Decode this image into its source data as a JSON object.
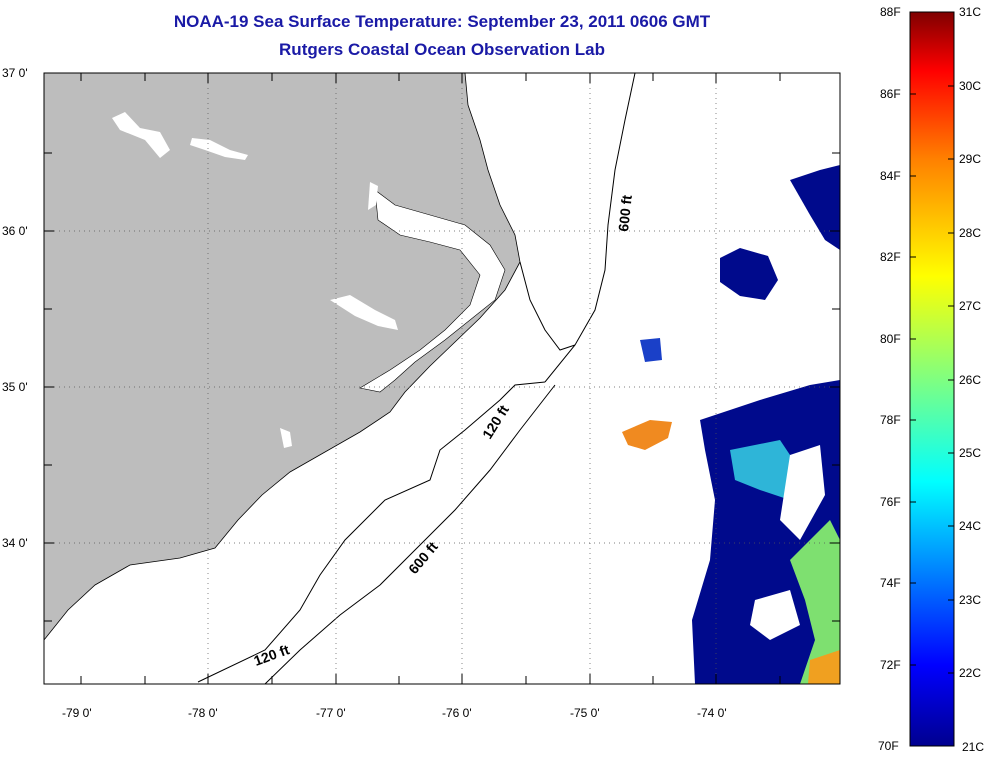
{
  "title": {
    "line1": "NOAA-19 Sea Surface Temperature:  September 23, 2011 0606 GMT",
    "line2": "Rutgers Coastal Ocean Observation Lab"
  },
  "map": {
    "lon_labels": [
      "-79 0'",
      "-78 0'",
      "-77 0'",
      "-76 0'",
      "-75 0'",
      "-74 0'"
    ],
    "lat_labels": [
      "37 0'",
      "36 0'",
      "35 0'",
      "34 0'"
    ],
    "contour_labels": [
      "600 ft",
      "120 ft",
      "600 ft",
      "120 ft"
    ],
    "colors": {
      "land": "#bdbdbd",
      "ocean_nodata": "#ffffff",
      "sst_cold": "#000a8c",
      "sst_mid": "#33d6e0",
      "sst_warm": "#f0a020"
    }
  },
  "colorbar": {
    "fahrenheit": [
      "88F",
      "86F",
      "84F",
      "82F",
      "80F",
      "78F",
      "76F",
      "74F",
      "72F",
      "70F"
    ],
    "celsius": [
      "31C",
      "30C",
      "29C",
      "28C",
      "27C",
      "26C",
      "25C",
      "24C",
      "23C",
      "22C",
      "21C"
    ],
    "colors": [
      "#7f0000",
      "#ff0000",
      "#ff8000",
      "#ffff00",
      "#80ff80",
      "#00ffff",
      "#0080ff",
      "#0000ff",
      "#00008f"
    ]
  }
}
